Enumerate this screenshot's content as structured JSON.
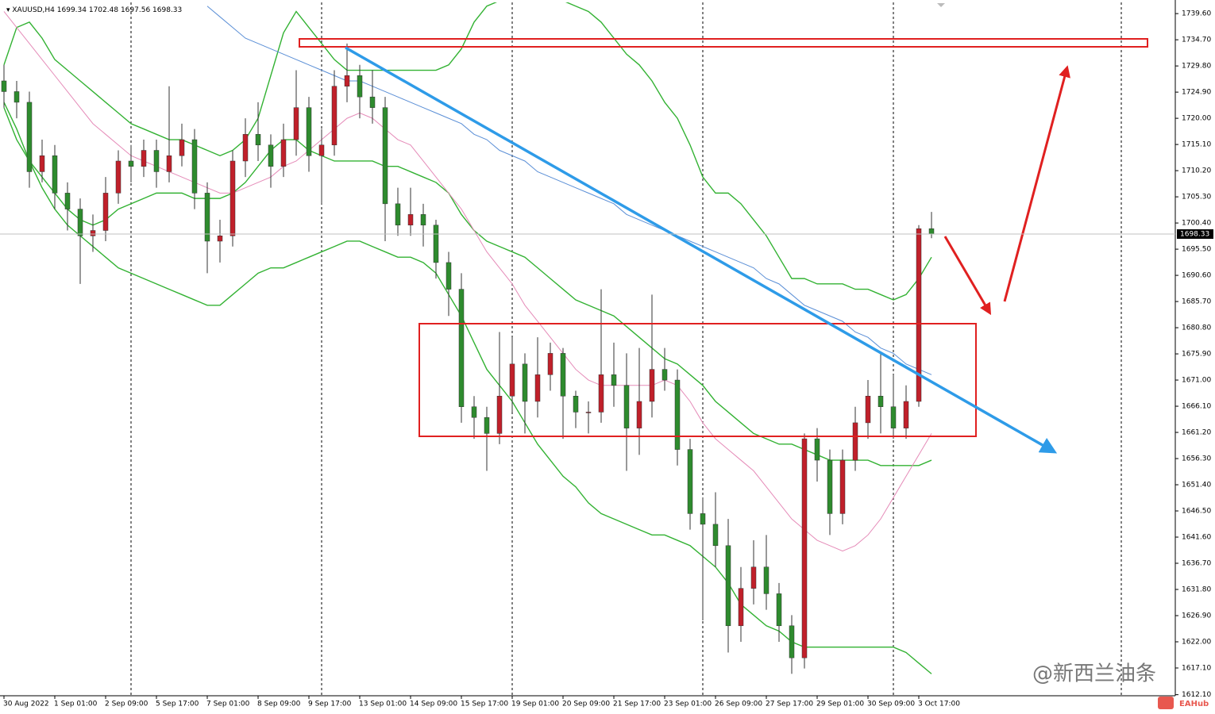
{
  "chart_data": {
    "type": "candlestick",
    "symbol": "XAUUSD,H4",
    "categories": [
      "30 Aug 2022",
      null,
      null,
      null,
      "1 Sep 01:00",
      null,
      null,
      null,
      "2 Sep 09:00",
      null,
      null,
      null,
      "5 Sep 17:00",
      null,
      null,
      null,
      "7 Sep 01:00",
      null,
      null,
      null,
      "8 Sep 09:00",
      null,
      null,
      null,
      "9 Sep 17:00",
      null,
      null,
      null,
      "13 Sep 01:00",
      null,
      null,
      null,
      "14 Sep 09:00",
      null,
      null,
      null,
      "15 Sep 17:00",
      null,
      null,
      null,
      "19 Sep 01:00",
      null,
      null,
      null,
      "20 Sep 09:00",
      null,
      null,
      null,
      "21 Sep 17:00",
      null,
      null,
      null,
      "23 Sep 01:00",
      null,
      null,
      null,
      "26 Sep 09:00",
      null,
      null,
      null,
      "27 Sep 17:00",
      null,
      null,
      null,
      "29 Sep 01:00",
      null,
      null,
      null,
      "30 Sep 09:00",
      null,
      null,
      null,
      "3 Oct 17:00",
      null
    ],
    "open": [
      1727,
      1725,
      1723,
      1710,
      1713,
      1706,
      1703,
      1698,
      1699,
      1706,
      1712,
      1711,
      1714,
      1710,
      1713,
      1716,
      1706,
      1697,
      1698,
      1712,
      1717,
      1715,
      1711,
      1716,
      1722,
      1713,
      1715,
      1726,
      1728,
      1724,
      1722,
      1704,
      1700,
      1702,
      1700,
      1693,
      1688,
      1666,
      1664,
      1661,
      1668,
      1674,
      1667,
      1672,
      1676,
      1668,
      1665,
      1665,
      1672,
      1670,
      1662,
      1667,
      1673,
      1671,
      1658,
      1646,
      1644,
      1640,
      1625,
      1632,
      1636,
      1631,
      1625,
      1619,
      1660,
      1656,
      1646,
      1656,
      1663,
      1668,
      1666,
      1662,
      1667,
      1699.34
    ],
    "high": [
      1730,
      1727,
      1725,
      1716,
      1715,
      1708,
      1705,
      1702,
      1709,
      1714,
      1715,
      1716,
      1716,
      1726,
      1719,
      1718,
      1708,
      1701,
      1714,
      1720,
      1723,
      1717,
      1719,
      1729,
      1724,
      1718,
      1729,
      1734,
      1730,
      1729,
      1724,
      1707,
      1707,
      1704,
      1701,
      1695,
      1691,
      1668,
      1666,
      1680,
      1679,
      1676,
      1679,
      1678,
      1677,
      1669,
      1667,
      1688,
      1678,
      1676,
      1677,
      1687,
      1677,
      1673,
      1660,
      1649,
      1650,
      1645,
      1636,
      1641,
      1642,
      1633,
      1627,
      1661,
      1662,
      1658,
      1658,
      1666,
      1671,
      1676,
      1672,
      1670,
      1700,
      1702.48
    ],
    "low": [
      1722,
      1720,
      1707,
      1708,
      1703,
      1699,
      1689,
      1695,
      1697,
      1704,
      1708,
      1709,
      1707,
      1708,
      1711,
      1703,
      1691,
      1693,
      1696,
      1709,
      1712,
      1707,
      1709,
      1713,
      1710,
      1704,
      1713,
      1723,
      1720,
      1719,
      1697,
      1698,
      1698,
      1696,
      1690,
      1683,
      1663,
      1660,
      1654,
      1659,
      1665,
      1661,
      1664,
      1669,
      1660,
      1662,
      1661,
      1663,
      1666,
      1654,
      1657,
      1664,
      1669,
      1655,
      1643,
      1626,
      1636,
      1620,
      1622,
      1629,
      1628,
      1622,
      1616,
      1617,
      1652,
      1642,
      1644,
      1654,
      1660,
      1661,
      1660,
      1660,
      1666,
      1697.56
    ],
    "close": [
      1725,
      1723,
      1710,
      1713,
      1706,
      1703,
      1698,
      1699,
      1706,
      1712,
      1711,
      1714,
      1710,
      1713,
      1716,
      1706,
      1697,
      1698,
      1712,
      1717,
      1715,
      1711,
      1716,
      1722,
      1713,
      1715,
      1726,
      1728,
      1724,
      1722,
      1704,
      1700,
      1702,
      1700,
      1693,
      1688,
      1666,
      1664,
      1661,
      1668,
      1674,
      1667,
      1672,
      1676,
      1668,
      1665,
      1665,
      1672,
      1670,
      1662,
      1667,
      1673,
      1671,
      1658,
      1646,
      1644,
      1640,
      1625,
      1632,
      1636,
      1631,
      1625,
      1619,
      1660,
      1656,
      1646,
      1656,
      1663,
      1668,
      1666,
      1662,
      1667,
      1699.34,
      1698.33
    ],
    "up_color": "#c0202a",
    "down_color": "#2e8b2e",
    "overlays": [
      {
        "color": "#33b233",
        "values": [
          1730,
          1737,
          1738,
          1735,
          1731,
          1729,
          1727,
          1725,
          1723,
          1721,
          1719,
          1718,
          1717,
          1716,
          1716,
          1715,
          1714,
          1713,
          1714,
          1716,
          1720,
          1728,
          1736,
          1740,
          1737,
          1734,
          1731,
          1729,
          1729,
          1729,
          1729,
          1729,
          1729,
          1729,
          1729,
          1730,
          1733,
          1738,
          1741,
          1742,
          1742,
          1742,
          1742,
          1742,
          1742,
          1741,
          1740,
          1738,
          1735,
          1732,
          1730,
          1727,
          1723,
          1720,
          1715,
          1709,
          1706,
          1706,
          1704,
          1701,
          1698,
          1694,
          1690,
          1690,
          1689,
          1689,
          1689,
          1688,
          1688,
          1687,
          1686,
          1687,
          1690,
          1694
        ]
      },
      {
        "color": "#33b233",
        "values": [
          1722,
          1716,
          1712,
          1709,
          1706,
          1703,
          1701,
          1700,
          1701,
          1703,
          1704,
          1705,
          1706,
          1706,
          1706,
          1705,
          1705,
          1705,
          1706,
          1708,
          1711,
          1714,
          1716,
          1716,
          1714,
          1713,
          1712,
          1712,
          1712,
          1712,
          1711,
          1711,
          1710,
          1709,
          1708,
          1706,
          1702,
          1699,
          1697,
          1696,
          1695,
          1694,
          1692,
          1690,
          1688,
          1686,
          1685,
          1684,
          1683,
          1681,
          1679,
          1677,
          1675,
          1674,
          1672,
          1670,
          1667,
          1665,
          1663,
          1661,
          1660,
          1659,
          1659,
          1658,
          1657,
          1656,
          1656,
          1656,
          1656,
          1655,
          1655,
          1655,
          1655,
          1656
        ]
      },
      {
        "color": "#33b233",
        "values": [
          1723,
          1718,
          1712,
          1707,
          1703,
          1700,
          1698,
          1696,
          1694,
          1692,
          1691,
          1690,
          1689,
          1688,
          1687,
          1686,
          1685,
          1685,
          1687,
          1689,
          1691,
          1692,
          1692,
          1693,
          1694,
          1695,
          1696,
          1697,
          1697,
          1696,
          1695,
          1694,
          1694,
          1693,
          1691,
          1687,
          1683,
          1678,
          1673,
          1670,
          1667,
          1663,
          1659,
          1656,
          1653,
          1651,
          1648,
          1646,
          1645,
          1644,
          1643,
          1642,
          1642,
          1641,
          1640,
          1638,
          1636,
          1633,
          1629,
          1627,
          1625,
          1624,
          1622,
          1621,
          1621,
          1621,
          1621,
          1621,
          1621,
          1621,
          1621,
          1620,
          1618,
          1616
        ]
      },
      {
        "color": "#5b8fd6",
        "values": [
          null,
          null,
          null,
          null,
          null,
          null,
          null,
          null,
          null,
          null,
          null,
          null,
          null,
          null,
          null,
          null,
          1741,
          1739,
          1737,
          1735,
          1734,
          1733,
          1732,
          1731,
          1730,
          1729,
          1728,
          1727,
          1727,
          1726,
          1725,
          1724,
          1723,
          1722,
          1721,
          1720,
          1719,
          1717,
          1716,
          1714,
          1713,
          1712,
          1710,
          1709,
          1708,
          1707,
          1706,
          1705,
          1704,
          1702,
          1701,
          1700,
          1699,
          1698,
          1697,
          1696,
          1695,
          1694,
          1693,
          1692,
          1690,
          1689,
          1687,
          1685,
          1684,
          1683,
          1682,
          1680,
          1679,
          1677,
          1676,
          1674,
          1673,
          1672
        ]
      },
      {
        "color": "#e58bb8",
        "values": [
          1740,
          1737,
          1734,
          1731,
          1728,
          1725,
          1722,
          1719,
          1717,
          1715,
          1713,
          1712,
          1711,
          1710,
          1709,
          1708,
          1707,
          1706,
          1706,
          1707,
          1708,
          1709,
          1711,
          1712,
          1714,
          1716,
          1718,
          1720,
          1721,
          1720,
          1718,
          1716,
          1715,
          1712,
          1709,
          1706,
          1703,
          1699,
          1695,
          1692,
          1689,
          1685,
          1682,
          1679,
          1676,
          1673,
          1671,
          1670,
          1670,
          1670,
          1670,
          1670,
          1671,
          1670,
          1667,
          1663,
          1660,
          1658,
          1656,
          1654,
          1651,
          1648,
          1645,
          1643,
          1641,
          1640,
          1639,
          1640,
          1642,
          1645,
          1649,
          1653,
          1657,
          1661
        ]
      }
    ],
    "ylim": [
      1611.9,
      1741.7
    ],
    "yticks": [
      {
        "value": 1739.6,
        "label": "1739.60"
      },
      {
        "value": 1734.7,
        "label": "1734.70"
      },
      {
        "value": 1729.8,
        "label": "1729.80"
      },
      {
        "value": 1724.9,
        "label": "1724.90"
      },
      {
        "value": 1720.0,
        "label": "1720.00"
      },
      {
        "value": 1715.1,
        "label": "1715.10"
      },
      {
        "value": 1710.2,
        "label": "1710.20"
      },
      {
        "value": 1705.3,
        "label": "1705.30"
      },
      {
        "value": 1700.4,
        "label": "1700.40"
      },
      {
        "value": 1695.5,
        "label": "1695.50"
      },
      {
        "value": 1690.6,
        "label": "1690.60"
      },
      {
        "value": 1685.7,
        "label": "1685.70"
      },
      {
        "value": 1680.8,
        "label": "1680.80"
      },
      {
        "value": 1675.9,
        "label": "1675.90"
      },
      {
        "value": 1671.0,
        "label": "1671.00"
      },
      {
        "value": 1666.1,
        "label": "1666.10"
      },
      {
        "value": 1661.2,
        "label": "1661.20"
      },
      {
        "value": 1656.3,
        "label": "1656.30"
      },
      {
        "value": 1651.4,
        "label": "1651.40"
      },
      {
        "value": 1646.5,
        "label": "1646.50"
      },
      {
        "value": 1641.6,
        "label": "1641.60"
      },
      {
        "value": 1636.7,
        "label": "1636.70"
      },
      {
        "value": 1631.8,
        "label": "1631.80"
      },
      {
        "value": 1626.9,
        "label": "1626.90"
      },
      {
        "value": 1622.0,
        "label": "1622.00"
      },
      {
        "value": 1617.1,
        "label": "1617.10"
      },
      {
        "value": 1612.1,
        "label": "1612.10"
      }
    ]
  },
  "watermark": "@新西兰油条",
  "brand": "EAHub"
}
